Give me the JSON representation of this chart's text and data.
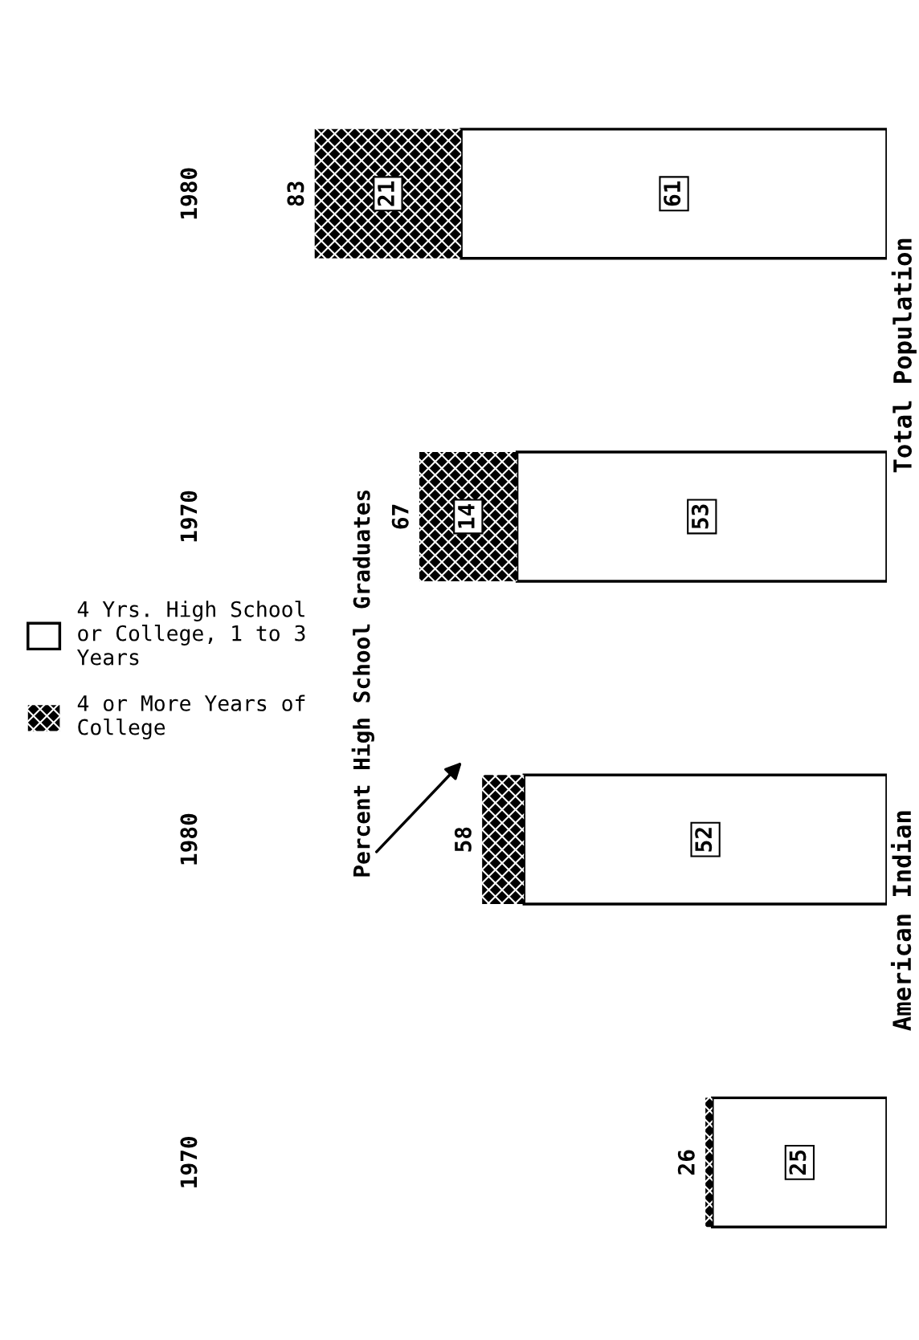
{
  "chart_data": {
    "type": "bar",
    "orientation": "horizontal",
    "stacked": true,
    "categories": [
      "1980",
      "1970",
      "1980",
      "1970"
    ],
    "series": [
      {
        "name": "4 Yrs. High School or College, 1 to 3 Years",
        "color": "#ffffff",
        "values": [
          61,
          53,
          52,
          25
        ],
        "value_labels": [
          "61",
          "53",
          "52",
          "25"
        ]
      },
      {
        "name": "4 or More Years of College",
        "color": "#000000",
        "values": [
          21,
          14,
          6,
          1
        ],
        "value_labels": [
          "21",
          "14",
          null,
          null
        ]
      }
    ],
    "totals": [
      "83",
      "67",
      "58",
      "26"
    ],
    "annotations": [
      "Total Population",
      "American Indian",
      "Percent High School Graduates"
    ],
    "legend": "left"
  }
}
